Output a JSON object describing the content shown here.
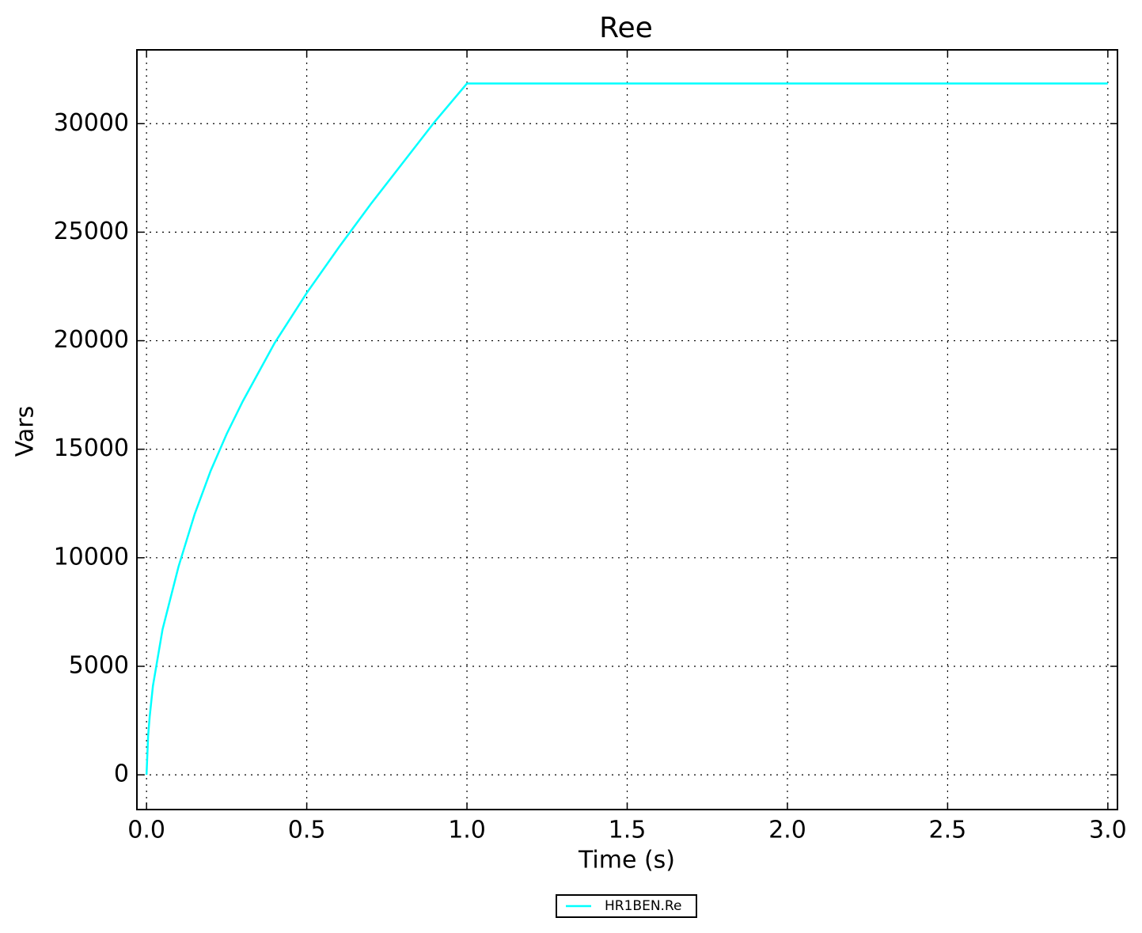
{
  "chart_data": {
    "type": "line",
    "title": "Ree",
    "x_label": "Time (s)",
    "y_label": "Vars",
    "x": [
      0,
      0.005,
      0.01,
      0.02,
      0.05,
      0.1,
      0.15,
      0.2,
      0.25,
      0.3,
      0.4,
      0.5,
      0.6,
      0.7,
      0.8,
      0.9,
      1.0,
      3.0
    ],
    "series": [
      {
        "name": "HR1BEN.Re",
        "color": "#00ffff",
        "values": [
          0,
          1800,
          2700,
          4100,
          6700,
          9600,
          12000,
          14000,
          15700,
          17200,
          19900,
          22200,
          24300,
          26300,
          28200,
          30100,
          31850,
          31850
        ]
      }
    ],
    "xlim": [
      -0.03,
      3.03
    ],
    "ylim": [
      -1600,
      33400
    ],
    "xticks": [
      {
        "value": 0,
        "label": "0.0"
      },
      0.5,
      {
        "value": 1,
        "label": "1.0"
      },
      1.5,
      {
        "value": 2,
        "label": "2.0"
      },
      2.5,
      {
        "value": 3,
        "label": "3.0"
      }
    ],
    "yticks": [
      0,
      5000,
      10000,
      15000,
      20000,
      25000,
      30000
    ],
    "grid": true,
    "legend": "below"
  }
}
